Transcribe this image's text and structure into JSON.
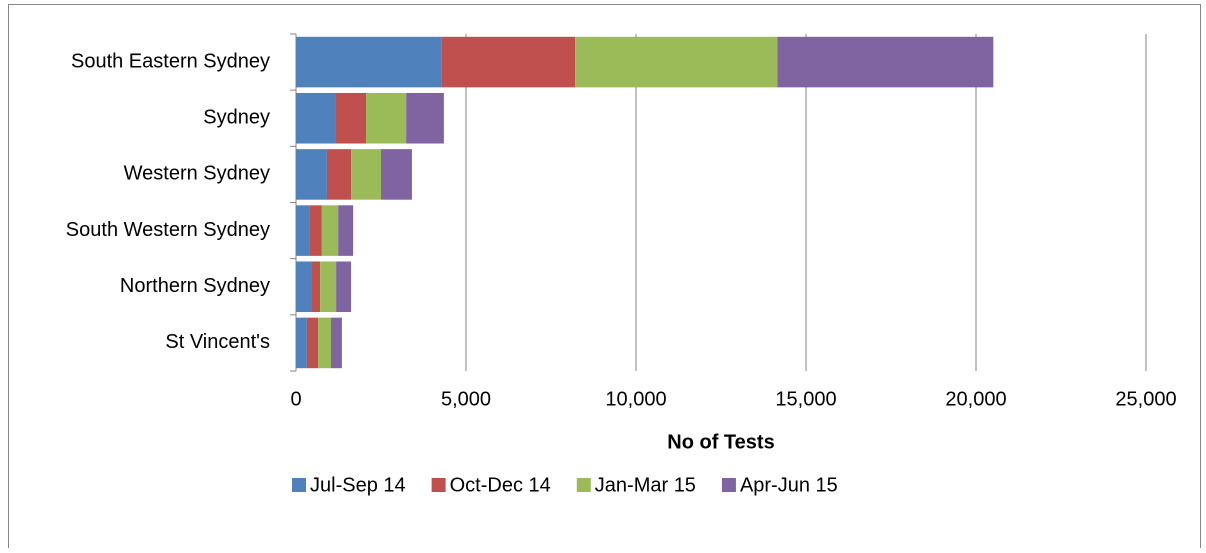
{
  "chart_data": {
    "type": "stacked-bar-horizontal",
    "x_axis_label": "No of Tests",
    "categories": [
      "South Eastern Sydney",
      "Sydney",
      "Western Sydney",
      "South Western Sydney",
      "Northern Sydney",
      "St Vincent's"
    ],
    "series": [
      {
        "name": "Jul-Sep 14",
        "color": "#4f81bd",
        "values": [
          4270,
          1150,
          910,
          410,
          470,
          320
        ]
      },
      {
        "name": "Oct-Dec 14",
        "color": "#c0504d",
        "values": [
          3940,
          910,
          710,
          350,
          240,
          330
        ]
      },
      {
        "name": "Jan-Mar 15",
        "color": "#9bbb59",
        "values": [
          5950,
          1180,
          880,
          480,
          470,
          380
        ]
      },
      {
        "name": "Apr-Jun 15",
        "color": "#8064a2",
        "values": [
          6350,
          1110,
          910,
          440,
          440,
          320
        ]
      }
    ],
    "xlim": [
      0,
      25000
    ],
    "xticks": [
      0,
      {
        "value": 5000,
        "label": "5,000"
      },
      {
        "value": 10000,
        "label": "10,000"
      },
      {
        "value": 15000,
        "label": "15,000"
      },
      {
        "value": 20000,
        "label": "20,000"
      },
      {
        "value": 25000,
        "label": "25,000"
      }
    ],
    "grid": true,
    "legend": "bottom"
  }
}
